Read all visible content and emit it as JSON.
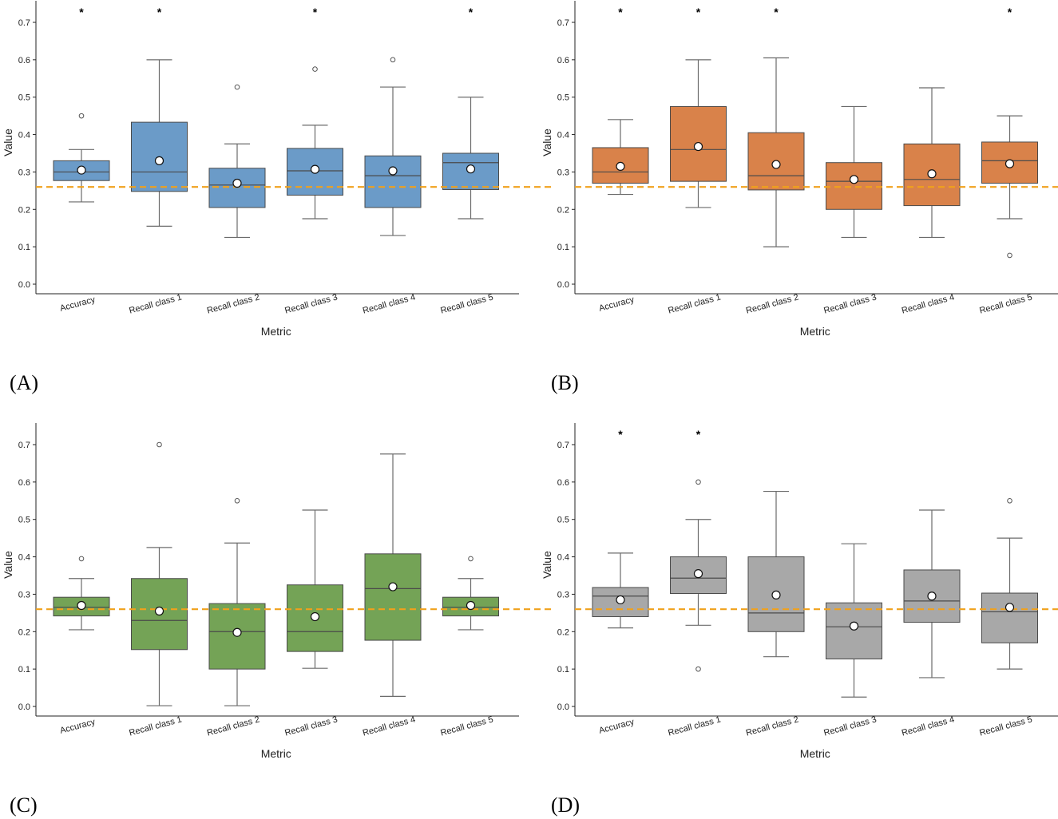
{
  "chart_data": [
    {
      "type": "box",
      "panel_label": "(A)",
      "xlabel": "Metric",
      "ylabel": "Value",
      "ylim": [
        0,
        0.75
      ],
      "yticks": [
        "0.0",
        "0.1",
        "0.2",
        "0.3",
        "0.4",
        "0.5",
        "0.6",
        "0.7"
      ],
      "reference_line": 0.26,
      "color": "#6b9bc8",
      "categories": [
        "Accuracy",
        "Recall class 1",
        "Recall class 2",
        "Recall class 3",
        "Recall class 4",
        "Recall class 5"
      ],
      "boxes": [
        {
          "whislo": 0.22,
          "q1": 0.277,
          "med": 0.3,
          "q3": 0.33,
          "whishi": 0.36,
          "mean": 0.305,
          "fliers": [
            0.45
          ],
          "significant": true
        },
        {
          "whislo": 0.155,
          "q1": 0.248,
          "med": 0.3,
          "q3": 0.433,
          "whishi": 0.6,
          "mean": 0.33,
          "fliers": [],
          "significant": true
        },
        {
          "whislo": 0.125,
          "q1": 0.205,
          "med": 0.265,
          "q3": 0.31,
          "whishi": 0.375,
          "mean": 0.27,
          "fliers": [
            0.527
          ],
          "significant": false
        },
        {
          "whislo": 0.175,
          "q1": 0.238,
          "med": 0.303,
          "q3": 0.363,
          "whishi": 0.425,
          "mean": 0.307,
          "fliers": [
            0.575
          ],
          "significant": true
        },
        {
          "whislo": 0.13,
          "q1": 0.205,
          "med": 0.29,
          "q3": 0.343,
          "whishi": 0.527,
          "mean": 0.303,
          "fliers": [
            0.6
          ],
          "significant": false
        },
        {
          "whislo": 0.175,
          "q1": 0.253,
          "med": 0.325,
          "q3": 0.35,
          "whishi": 0.5,
          "mean": 0.308,
          "fliers": [],
          "significant": true
        }
      ]
    },
    {
      "type": "box",
      "panel_label": "(B)",
      "xlabel": "Metric",
      "ylabel": "Value",
      "ylim": [
        0,
        0.75
      ],
      "yticks": [
        "0.0",
        "0.1",
        "0.2",
        "0.3",
        "0.4",
        "0.5",
        "0.6",
        "0.7"
      ],
      "reference_line": 0.26,
      "color": "#d9824a",
      "categories": [
        "Accuracy",
        "Recall class 1",
        "Recall class 2",
        "Recall class 3",
        "Recall class 4",
        "Recall class 5"
      ],
      "boxes": [
        {
          "whislo": 0.24,
          "q1": 0.27,
          "med": 0.3,
          "q3": 0.365,
          "whishi": 0.44,
          "mean": 0.315,
          "fliers": [],
          "significant": true
        },
        {
          "whislo": 0.205,
          "q1": 0.275,
          "med": 0.36,
          "q3": 0.475,
          "whishi": 0.6,
          "mean": 0.368,
          "fliers": [],
          "significant": true
        },
        {
          "whislo": 0.1,
          "q1": 0.252,
          "med": 0.29,
          "q3": 0.405,
          "whishi": 0.605,
          "mean": 0.32,
          "fliers": [],
          "significant": true
        },
        {
          "whislo": 0.125,
          "q1": 0.2,
          "med": 0.275,
          "q3": 0.325,
          "whishi": 0.475,
          "mean": 0.28,
          "fliers": [],
          "significant": false
        },
        {
          "whislo": 0.125,
          "q1": 0.21,
          "med": 0.28,
          "q3": 0.375,
          "whishi": 0.525,
          "mean": 0.295,
          "fliers": [],
          "significant": false
        },
        {
          "whislo": 0.175,
          "q1": 0.27,
          "med": 0.33,
          "q3": 0.38,
          "whishi": 0.45,
          "mean": 0.322,
          "fliers": [
            0.077
          ],
          "significant": true
        }
      ]
    },
    {
      "type": "box",
      "panel_label": "(C)",
      "xlabel": "Metric",
      "ylabel": "Value",
      "ylim": [
        0,
        0.75
      ],
      "yticks": [
        "0.0",
        "0.1",
        "0.2",
        "0.3",
        "0.4",
        "0.5",
        "0.6",
        "0.7"
      ],
      "reference_line": 0.26,
      "color": "#74a356",
      "categories": [
        "Accuracy",
        "Recall class 1",
        "Recall class 2",
        "Recall class 3",
        "Recall class 4",
        "Recall class 5"
      ],
      "boxes": [
        {
          "whislo": 0.205,
          "q1": 0.242,
          "med": 0.265,
          "q3": 0.292,
          "whishi": 0.342,
          "mean": 0.27,
          "fliers": [
            0.395
          ],
          "significant": false
        },
        {
          "whislo": 0.002,
          "q1": 0.152,
          "med": 0.23,
          "q3": 0.342,
          "whishi": 0.425,
          "mean": 0.255,
          "fliers": [
            0.7
          ],
          "significant": false
        },
        {
          "whislo": 0.002,
          "q1": 0.1,
          "med": 0.2,
          "q3": 0.275,
          "whishi": 0.437,
          "mean": 0.198,
          "fliers": [
            0.55
          ],
          "significant": false
        },
        {
          "whislo": 0.102,
          "q1": 0.147,
          "med": 0.2,
          "q3": 0.325,
          "whishi": 0.525,
          "mean": 0.24,
          "fliers": [],
          "significant": false
        },
        {
          "whislo": 0.027,
          "q1": 0.177,
          "med": 0.315,
          "q3": 0.408,
          "whishi": 0.675,
          "mean": 0.32,
          "fliers": [],
          "significant": false
        },
        {
          "whislo": 0.205,
          "q1": 0.242,
          "med": 0.265,
          "q3": 0.292,
          "whishi": 0.342,
          "mean": 0.27,
          "fliers": [
            0.395
          ],
          "significant": false
        }
      ]
    },
    {
      "type": "box",
      "panel_label": "(D)",
      "xlabel": "Metric",
      "ylabel": "Value",
      "ylim": [
        0,
        0.75
      ],
      "yticks": [
        "0.0",
        "0.1",
        "0.2",
        "0.3",
        "0.4",
        "0.5",
        "0.6",
        "0.7"
      ],
      "reference_line": 0.26,
      "color": "#a8a8a8",
      "categories": [
        "Accuracy",
        "Recall class 1",
        "Recall class 2",
        "Recall class 3",
        "Recall class 4",
        "Recall class 5"
      ],
      "boxes": [
        {
          "whislo": 0.21,
          "q1": 0.24,
          "med": 0.295,
          "q3": 0.318,
          "whishi": 0.41,
          "mean": 0.285,
          "fliers": [],
          "significant": true
        },
        {
          "whislo": 0.217,
          "q1": 0.302,
          "med": 0.343,
          "q3": 0.4,
          "whishi": 0.5,
          "mean": 0.355,
          "fliers": [
            0.1,
            0.6
          ],
          "significant": true
        },
        {
          "whislo": 0.133,
          "q1": 0.2,
          "med": 0.25,
          "q3": 0.4,
          "whishi": 0.575,
          "mean": 0.298,
          "fliers": [],
          "significant": false
        },
        {
          "whislo": 0.025,
          "q1": 0.127,
          "med": 0.213,
          "q3": 0.277,
          "whishi": 0.435,
          "mean": 0.215,
          "fliers": [],
          "significant": false
        },
        {
          "whislo": 0.077,
          "q1": 0.225,
          "med": 0.282,
          "q3": 0.365,
          "whishi": 0.525,
          "mean": 0.295,
          "fliers": [],
          "significant": false
        },
        {
          "whislo": 0.1,
          "q1": 0.17,
          "med": 0.253,
          "q3": 0.303,
          "whishi": 0.45,
          "mean": 0.265,
          "fliers": [
            0.55
          ],
          "significant": false
        }
      ]
    }
  ],
  "style": {
    "reference_color": "#f0a11c",
    "whisker_color": "#6b6b6b",
    "box_edge_color": "#4a4a4a",
    "axis_color": "#222222"
  },
  "significance_marker": "*"
}
